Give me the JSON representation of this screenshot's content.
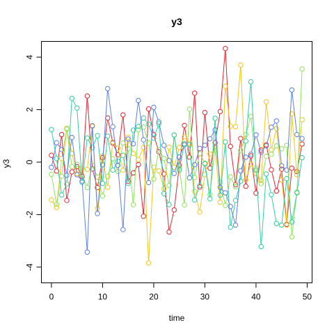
{
  "chart_data": {
    "type": "line",
    "title": "y3",
    "xlabel": "time",
    "ylabel": "y3",
    "xlim": [
      -1.96,
      50.96
    ],
    "ylim": [
      -4.6,
      4.6
    ],
    "x_ticks": [
      0,
      10,
      20,
      30,
      40,
      50
    ],
    "y_ticks": [
      -4,
      -2,
      0,
      2,
      4
    ],
    "grid": false,
    "legend": "none",
    "x": [
      0,
      1,
      2,
      3,
      4,
      5,
      6,
      7,
      8,
      9,
      10,
      11,
      12,
      13,
      14,
      15,
      16,
      17,
      18,
      19,
      20,
      21,
      22,
      23,
      24,
      25,
      26,
      27,
      28,
      29,
      30,
      31,
      32,
      33,
      34,
      35,
      36,
      37,
      38,
      39,
      40,
      41,
      42,
      43,
      44,
      45,
      46,
      47,
      48,
      49
    ],
    "series": [
      {
        "color": "#e8222f",
        "values": [
          0.26,
          -0.34,
          1.05,
          -1.46,
          -0.37,
          -0.17,
          -0.55,
          2.52,
          -0.26,
          -0.97,
          0.17,
          1.68,
          0.73,
          0.28,
          1.8,
          -0.73,
          -0.41,
          -0.09,
          -2.06,
          2.03,
          1.04,
          0.39,
          -0.45,
          -2.66,
          -1.82,
          -0.13,
          1.4,
          0.19,
          2.63,
          -0.95,
          1.89,
          -0.23,
          0.74,
          1.93,
          4.33,
          0.6,
          -0.86,
          0.9,
          -0.92,
          0.24,
          -1.18,
          0.46,
          0.66,
          -0.29,
          -1.1,
          -0.27,
          -2.37,
          -0.23,
          -0.36,
          0.69
        ]
      },
      {
        "color": "#f5c518",
        "values": [
          -1.44,
          -1.73,
          0.14,
          1.26,
          0.33,
          -0.44,
          -0.22,
          -0.28,
          1.36,
          -1.77,
          0.24,
          -0.96,
          0.77,
          0.53,
          -0.31,
          0.95,
          0.33,
          0.1,
          0.56,
          -3.84,
          -0.19,
          -0.33,
          -1.01,
          0.57,
          -0.19,
          0.56,
          0.96,
          0.72,
          -1.12,
          -1.9,
          -0.47,
          0.31,
          0.47,
          -1.53,
          2.89,
          1.37,
          1.35,
          3.7,
          -0.67,
          -0.08,
          -0.43,
          -0.7,
          2.3,
          0.47,
          1.28,
          -0.68,
          -2.4,
          1.84,
          -0.48,
          1.62
        ]
      },
      {
        "color": "#8ee35c",
        "values": [
          -0.46,
          -1.61,
          -0.54,
          1.29,
          -0.17,
          -0.08,
          -0.49,
          -0.97,
          -0.12,
          -0.57,
          -1.29,
          -0.54,
          0.13,
          -0.36,
          0.73,
          0.51,
          -1.62,
          1.24,
          1.33,
          0.73,
          -0.64,
          0.47,
          0.14,
          -0.89,
          1.04,
          -0.24,
          -1.63,
          2.02,
          -0.59,
          0.33,
          -0.04,
          -1.24,
          0.61,
          -0.77,
          -1.65,
          -0.56,
          -0.94,
          0.45,
          1.05,
          1.74,
          -0.21,
          -0.82,
          0.22,
          0.3,
          0.62,
          0.51,
          0.64,
          -2.85,
          -1.14,
          3.55
        ]
      },
      {
        "color": "#2ecf9e",
        "values": [
          1.24,
          0.14,
          -1.25,
          -0.84,
          2.43,
          2.06,
          -0.77,
          0.92,
          0.55,
          1.01,
          -0.81,
          0.99,
          -0.3,
          0.03,
          0.26,
          -0.81,
          1.22,
          1.36,
          1.68,
          1.44,
          0.91,
          1.46,
          -1.2,
          -1.62,
          1.03,
          -0.31,
          0.7,
          0.67,
          -1.44,
          -0.89,
          -0.06,
          -1.4,
          1.67,
          -1.26,
          0.77,
          -2.48,
          -1.46,
          -0.73,
          0.8,
          3.06,
          -0.3,
          -3.22,
          -0.45,
          -1.24,
          -2.34,
          -2.4,
          -0.63,
          -2.28,
          -1.17,
          0.17
        ]
      },
      {
        "color": "#5b7fe6",
        "values": [
          -0.2,
          0.74,
          0.48,
          -0.5,
          0.94,
          -0.48,
          -0.72,
          -3.43,
          1.39,
          -1.96,
          -0.1,
          2.8,
          1.35,
          -0.12,
          -2.57,
          0.88,
          0.7,
          2.35,
          0.85,
          -0.78,
          2.09,
          1.53,
          0.64,
          0.06,
          -0.43,
          0.2,
          0.66,
          -0.6,
          -0.1,
          0.52,
          0.64,
          0.89,
          1.23,
          -0.96,
          -1.17,
          -1.69,
          -2.4,
          -0.33,
          0.19,
          0.3,
          1.04,
          0.38,
          0.62,
          1.33,
          1.57,
          -0.14,
          -0.3,
          2.75,
          1.05,
          0.9
        ]
      }
    ]
  }
}
